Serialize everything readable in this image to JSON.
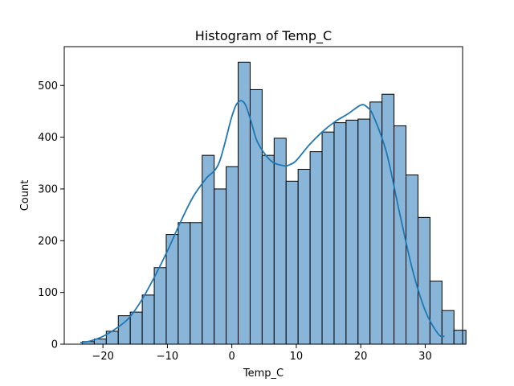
{
  "chart_data": {
    "type": "bar",
    "title": "Histogram of Temp_C",
    "xlabel": "Temp_C",
    "ylabel": "Count",
    "xlim": [
      -26.0,
      35.8
    ],
    "ylim": [
      0,
      575
    ],
    "x_ticks": [
      -20,
      -10,
      0,
      10,
      20,
      30
    ],
    "y_ticks": [
      0,
      100,
      200,
      300,
      400,
      500
    ],
    "bin_start": -23.2,
    "bin_width": 1.86,
    "values": [
      5,
      10,
      25,
      55,
      62,
      95,
      148,
      212,
      235,
      235,
      365,
      300,
      343,
      545,
      492,
      365,
      398,
      315,
      338,
      372,
      410,
      428,
      433,
      435,
      468,
      483,
      422,
      327,
      245,
      122,
      65,
      27
    ],
    "kde": {
      "x": [
        -23.5,
        -22,
        -20,
        -18,
        -16,
        -14,
        -12,
        -10,
        -8,
        -6,
        -4,
        -2,
        0,
        1,
        2,
        3,
        4,
        6,
        8,
        9,
        10,
        12,
        14,
        16,
        18,
        20,
        21,
        22,
        24,
        26,
        28,
        30,
        32,
        33
      ],
      "y": [
        3,
        6,
        15,
        30,
        50,
        85,
        130,
        180,
        235,
        285,
        320,
        350,
        440,
        468,
        465,
        430,
        390,
        355,
        345,
        347,
        355,
        385,
        410,
        430,
        445,
        462,
        458,
        440,
        370,
        255,
        145,
        65,
        20,
        15
      ]
    },
    "bar_color": "#88b5d8",
    "bar_edge": "#000000",
    "kde_color": "#1f77b4",
    "grid": false,
    "legend": "none"
  }
}
